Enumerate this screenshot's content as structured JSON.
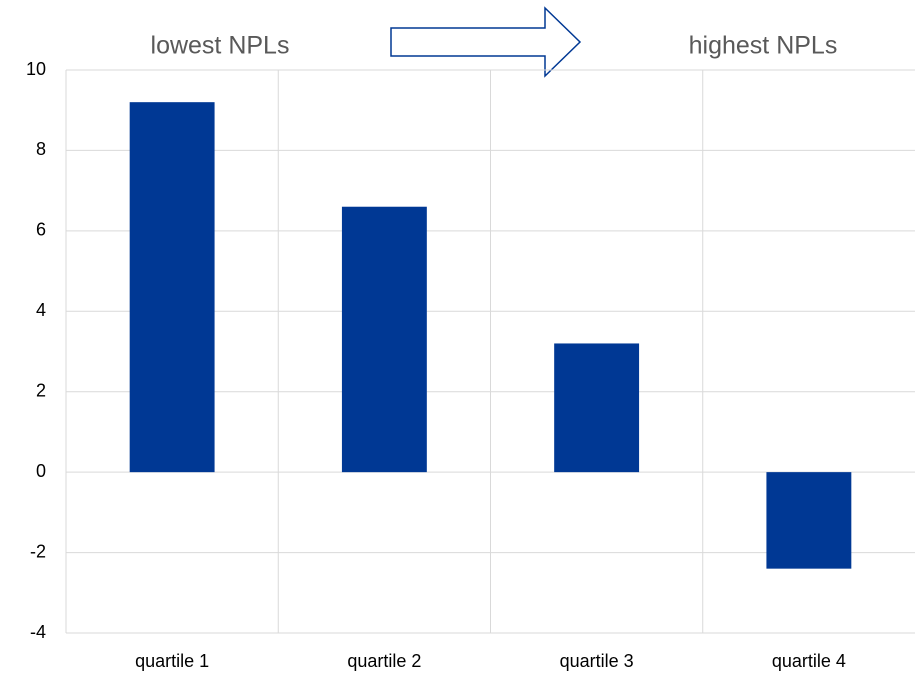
{
  "chart_data": {
    "type": "bar",
    "annotations": [
      "lowest NPLs",
      "highest NPLs"
    ],
    "categories": [
      "quartile 1",
      "quartile 2",
      "quartile 3",
      "quartile 4"
    ],
    "values": [
      9.2,
      6.6,
      3.2,
      -2.4
    ],
    "color": "#003894",
    "ylim": [
      -4,
      10
    ],
    "yticks": [
      -4,
      -2,
      0,
      2,
      4,
      6,
      8,
      10
    ],
    "grid": true
  }
}
